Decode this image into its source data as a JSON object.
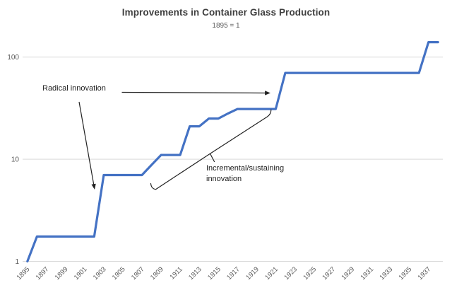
{
  "chart_data": {
    "type": "line",
    "title": "Improvements in Container Glass Production",
    "subtitle": "1895 = 1",
    "xlabel": "",
    "ylabel": "",
    "y_scale": "log",
    "ylim": [
      1,
      200
    ],
    "grid": "horizontal-decades",
    "legend": "none",
    "x": [
      1895,
      1896,
      1897,
      1898,
      1899,
      1900,
      1901,
      1902,
      1903,
      1904,
      1905,
      1906,
      1907,
      1908,
      1909,
      1910,
      1911,
      1912,
      1913,
      1914,
      1915,
      1916,
      1917,
      1918,
      1919,
      1920,
      1921,
      1922,
      1923,
      1924,
      1925,
      1926,
      1927,
      1928,
      1929,
      1930,
      1931,
      1932,
      1933,
      1934,
      1935,
      1936,
      1937,
      1938
    ],
    "values": [
      1,
      1.75,
      1.75,
      1.75,
      1.75,
      1.75,
      1.75,
      1.75,
      7,
      7,
      7,
      7,
      7,
      8.8,
      11,
      11,
      11,
      21,
      21,
      25,
      25,
      28,
      31,
      31,
      31,
      31,
      31,
      70,
      70,
      70,
      70,
      70,
      70,
      70,
      70,
      70,
      70,
      70,
      70,
      70,
      70,
      70,
      140,
      140
    ],
    "y_ticks": [
      1,
      10,
      100
    ],
    "y_tick_labels": [
      "1",
      "10",
      "100"
    ],
    "x_tick_labels": [
      "1895",
      "1897",
      "1899",
      "1901",
      "1903",
      "1905",
      "1907",
      "1909",
      "1911",
      "1913",
      "1915",
      "1917",
      "1919",
      "1921",
      "1923",
      "1925",
      "1927",
      "1929",
      "1931",
      "1933",
      "1935",
      "1937"
    ]
  },
  "annotations": {
    "radical": {
      "text": "Radical innovation",
      "points_to": [
        "step 1902-1903",
        "step 1921-1922"
      ]
    },
    "incremental": {
      "line1": "Incremental/sustaining",
      "line2": "innovation",
      "spans": "1909-1921 steps"
    }
  },
  "colors": {
    "series_line": "#4472C4",
    "gridline": "#D9D9D9",
    "axis_text": "#595959",
    "title_text": "#3f3f3f",
    "annotation": "#222222",
    "background": "#ffffff"
  }
}
